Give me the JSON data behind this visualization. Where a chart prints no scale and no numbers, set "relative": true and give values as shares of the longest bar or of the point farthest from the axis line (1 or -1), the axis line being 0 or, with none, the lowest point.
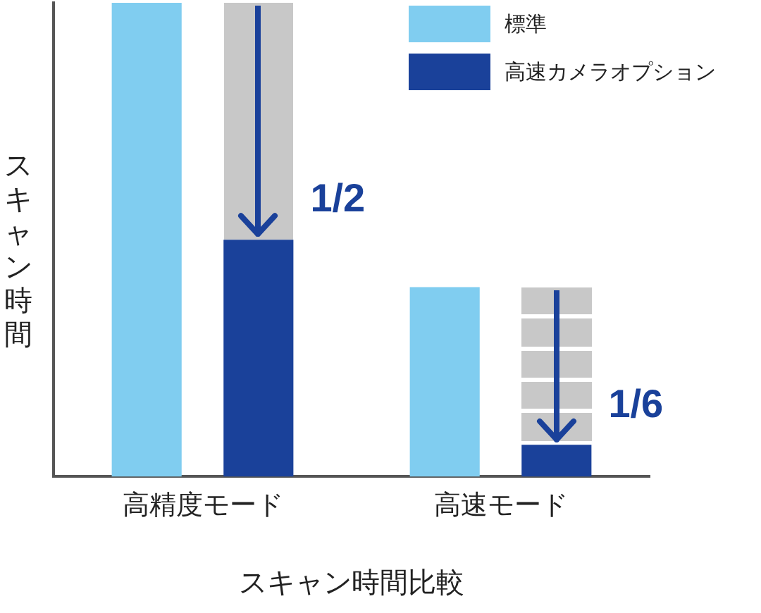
{
  "chart_data": {
    "type": "bar",
    "relative": true,
    "xlabel": "スキャン時間比較",
    "ylabel": "スキャン時間",
    "categories": [
      "高精度モード",
      "高速モード"
    ],
    "series": [
      {
        "name": "標準",
        "color": "#80cdf0",
        "values": [
          1,
          0.4
        ]
      },
      {
        "name": "高速カメラオプション",
        "color": "#1a419a",
        "values": [
          0.5,
          0.067
        ]
      }
    ],
    "annotations": [
      "1/2",
      "1/6"
    ],
    "legend": "top right",
    "grid": false
  }
}
